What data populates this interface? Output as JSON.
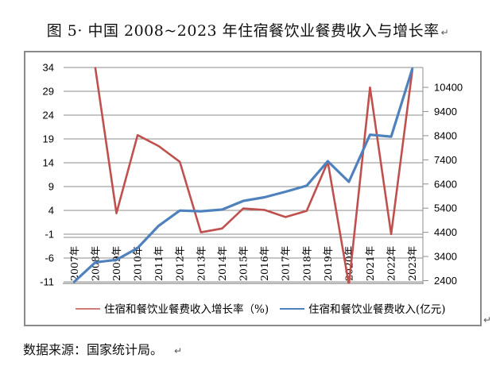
{
  "page": {
    "title": "图 5· 中国 2008~2023 年住宿餐饮业餐费收入与增长率",
    "paragraph_mark": "↵",
    "source_text": "数据来源：国家统计局。"
  },
  "chart_data": {
    "type": "line",
    "title": "图 5 中国 2008~2023 年住宿餐饮业餐费收入与增长率",
    "categories": [
      "2007年",
      "2008年",
      "2009年",
      "2010年",
      "2011年",
      "2012年",
      "2013年",
      "2014年",
      "2015年",
      "2016年",
      "2017年",
      "2018年",
      "2019年",
      "2020年",
      "2021年",
      "2022年",
      "2023年"
    ],
    "series": [
      {
        "name": "住宿和餐饮业餐费收入增长率（%)",
        "axis": "left",
        "color": "#C0504D",
        "values": [
          null,
          33.9,
          3.4,
          19.8,
          17.5,
          14.2,
          -0.6,
          0.2,
          4.4,
          4.1,
          2.6,
          3.9,
          14.2,
          -11.6,
          29.8,
          -1.0,
          33.4
        ]
      },
      {
        "name": "住宿和餐饮业餐费收入(亿元)",
        "axis": "right",
        "color": "#4F81BD",
        "values": [
          2350,
          3160,
          3260,
          3750,
          4670,
          5300,
          5270,
          5340,
          5700,
          5850,
          6080,
          6330,
          7340,
          6490,
          8440,
          8360,
          11170
        ]
      }
    ],
    "left_axis": {
      "ticks": [
        34,
        29,
        24,
        19,
        14,
        9,
        4,
        -1,
        -6,
        -11
      ],
      "min": -11,
      "max": 34,
      "major_unit": 5
    },
    "right_axis": {
      "ticks": [
        10400,
        9400,
        8400,
        7400,
        6400,
        5400,
        4400,
        3400,
        2400
      ],
      "min": 2400,
      "max": 11400,
      "major_unit": 1000
    },
    "grid": true,
    "legend_position": "bottom",
    "x_labels_rotated_90": true
  }
}
